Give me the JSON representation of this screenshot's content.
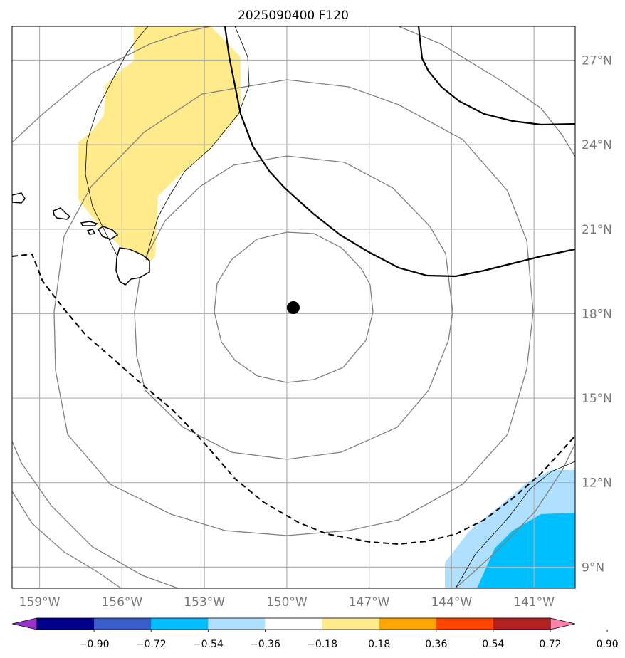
{
  "title": "2025090400 F120",
  "map": {
    "projection": "lat-lon",
    "extent": {
      "lon_min": -160,
      "lon_max": -139.5,
      "lat_min": 8.25,
      "lat_max": 28.2
    },
    "gridlines": true,
    "center_marker": {
      "lon": -149.75,
      "lat": 18.2,
      "color": "#000000"
    }
  },
  "lon_ticks": [
    {
      "value": -159,
      "label": "159°W"
    },
    {
      "value": -156,
      "label": "156°W"
    },
    {
      "value": -153,
      "label": "153°W"
    },
    {
      "value": -150,
      "label": "150°W"
    },
    {
      "value": -147,
      "label": "147°W"
    },
    {
      "value": -144,
      "label": "144°W"
    },
    {
      "value": -141,
      "label": "141°W"
    }
  ],
  "lat_ticks": [
    {
      "value": 27,
      "label": "27°N"
    },
    {
      "value": 24,
      "label": "24°N"
    },
    {
      "value": 21,
      "label": "21°N"
    },
    {
      "value": 18,
      "label": "18°N"
    },
    {
      "value": 15,
      "label": "15°N"
    },
    {
      "value": 12,
      "label": "12°N"
    },
    {
      "value": 9,
      "label": "9°N"
    }
  ],
  "colorbar": {
    "colors": [
      "#9932cc",
      "#00008b",
      "#3a5fcd",
      "#00bfff",
      "#b0e0ff",
      "#ffffff",
      "#ffeb8b",
      "#ffa500",
      "#ff4500",
      "#b22222",
      "#ff82ab"
    ],
    "ticks": [
      "−0.90",
      "−0.72",
      "−0.54",
      "−0.36",
      "−0.18",
      "0.18",
      "0.36",
      "0.54",
      "0.72",
      "0.90"
    ]
  },
  "range_rings": {
    "count": 5,
    "color": "#808080"
  },
  "contours": [
    {
      "style": "solid",
      "color": "#000000"
    },
    {
      "style": "dashed",
      "color": "#000000"
    }
  ],
  "fill_colors": {
    "positive_low": "#ffeb8b",
    "negative_low": "#b0e0ff",
    "negative_mid": "#00bfff"
  }
}
